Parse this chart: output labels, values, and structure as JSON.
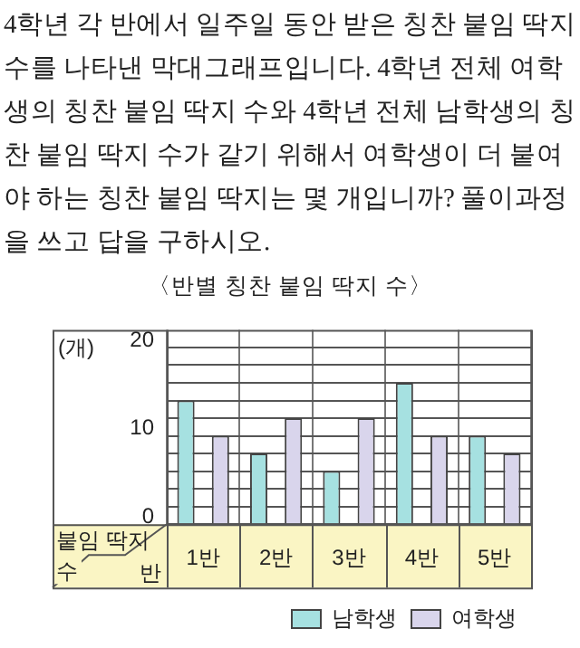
{
  "chart_data": {
    "type": "bar",
    "title": "〈반별 칭찬 붙임 딱지 수〉",
    "xlabel": "반",
    "ylabel": "붙임 딱지 수",
    "annotations": [
      "4학년 각 반에서 일주일 동안 받은 칭찬 붙임 딱지 수를 나타낸 막대그래프입니다. 4학년 전체 여학생의 칭찬 붙임 딱지 수와 4학년 전체 남학생의 칭찬 붙임 딱지 수가 같기 위해서 여학생이 더 붙여야 하는 칭찬 붙임 딱지는 몇 개입니까? 풀이과정을 쓰고 답을 구하시오.",
      "(개)"
    ],
    "categories": [
      "1반",
      "2반",
      "3반",
      "4반",
      "5반"
    ],
    "series": [
      {
        "name": "남학생",
        "color": "#a6e1e1",
        "values": [
          14,
          8,
          6,
          16,
          10
        ]
      },
      {
        "name": "여학생",
        "color": "#d9d5ec",
        "values": [
          10,
          12,
          12,
          10,
          8
        ]
      }
    ],
    "ylim": [
      0,
      22
    ],
    "yticks": [
      0,
      {
        "value": 2,
        "label": null
      },
      {
        "value": 4,
        "label": null
      },
      {
        "value": 6,
        "label": null
      },
      {
        "value": 8,
        "label": null
      },
      10,
      {
        "value": 12,
        "label": null
      },
      {
        "value": 14,
        "label": null
      },
      {
        "value": 16,
        "label": null
      },
      {
        "value": 18,
        "label": null
      },
      20
    ],
    "grid": true,
    "legend": "bottom right"
  }
}
